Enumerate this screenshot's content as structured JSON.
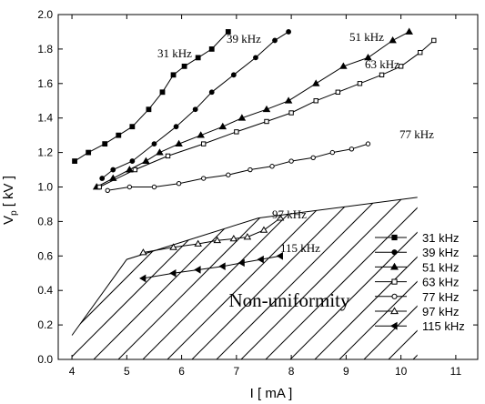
{
  "chart_data": {
    "type": "line",
    "title": "",
    "xlabel": "I [ mA ]",
    "ylabel_main": "V",
    "ylabel_sub": "p",
    "ylabel_unit": "[ kV ]",
    "xlim": [
      3.75,
      11.4
    ],
    "ylim": [
      0.0,
      2.0
    ],
    "x_ticks": [
      4,
      5,
      6,
      7,
      8,
      9,
      10,
      11
    ],
    "x_tick_labels": [
      "4",
      "5",
      "6",
      "7",
      "8",
      "9",
      "10",
      "11"
    ],
    "y_ticks": [
      0.0,
      0.2,
      0.4,
      0.6,
      0.8,
      1.0,
      1.2,
      1.4,
      1.6,
      1.8,
      2.0
    ],
    "y_tick_labels": [
      "0.0",
      "0.2",
      "0.4",
      "0.6",
      "0.8",
      "1.0",
      "1.2",
      "1.4",
      "1.6",
      "1.8",
      "2.0"
    ],
    "grid": false,
    "legend_position": "bottom-right",
    "series": [
      {
        "name": "31 kHz",
        "marker": "square-filled",
        "label": "31 kHz",
        "x": [
          4.05,
          4.3,
          4.6,
          4.85,
          5.1,
          5.4,
          5.65,
          5.85,
          6.05,
          6.3,
          6.55,
          6.85
        ],
        "y": [
          1.15,
          1.2,
          1.25,
          1.3,
          1.35,
          1.45,
          1.55,
          1.65,
          1.7,
          1.75,
          1.8,
          1.9
        ]
      },
      {
        "name": "39 kHz",
        "marker": "circle-filled",
        "label": "39 kHz",
        "x": [
          4.55,
          4.75,
          5.1,
          5.5,
          5.9,
          6.25,
          6.55,
          6.95,
          7.35,
          7.7,
          7.95
        ],
        "y": [
          1.05,
          1.1,
          1.15,
          1.25,
          1.35,
          1.45,
          1.55,
          1.65,
          1.75,
          1.85,
          1.9
        ]
      },
      {
        "name": "51 kHz",
        "marker": "triangle-filled",
        "label": "51 kHz",
        "x": [
          4.45,
          4.75,
          5.05,
          5.35,
          5.6,
          5.95,
          6.35,
          6.75,
          7.1,
          7.55,
          7.95,
          8.45,
          8.95,
          9.4,
          9.85,
          10.15
        ],
        "y": [
          1.0,
          1.05,
          1.1,
          1.15,
          1.2,
          1.25,
          1.3,
          1.35,
          1.4,
          1.45,
          1.5,
          1.6,
          1.7,
          1.75,
          1.85,
          1.9
        ]
      },
      {
        "name": "63 kHz",
        "marker": "square-open",
        "label": "63 kHz",
        "x": [
          4.5,
          5.15,
          5.75,
          6.4,
          7.0,
          7.55,
          8.0,
          8.45,
          8.85,
          9.25,
          9.65,
          10.0,
          10.35,
          10.6
        ],
        "y": [
          1.0,
          1.1,
          1.18,
          1.25,
          1.32,
          1.38,
          1.43,
          1.5,
          1.55,
          1.6,
          1.65,
          1.7,
          1.78,
          1.85
        ]
      },
      {
        "name": "77 kHz",
        "marker": "circle-open",
        "label": "77 kHz",
        "x": [
          4.65,
          5.05,
          5.5,
          5.95,
          6.4,
          6.85,
          7.25,
          7.65,
          8.0,
          8.4,
          8.75,
          9.1,
          9.4
        ],
        "y": [
          0.98,
          1.0,
          1.0,
          1.02,
          1.05,
          1.07,
          1.1,
          1.12,
          1.15,
          1.17,
          1.2,
          1.22,
          1.25
        ]
      },
      {
        "name": "97 kHz",
        "marker": "triangle-open",
        "label": "97 kHz",
        "x": [
          5.3,
          5.85,
          6.3,
          6.65,
          6.95,
          7.2,
          7.5,
          7.8
        ],
        "y": [
          0.62,
          0.65,
          0.67,
          0.69,
          0.7,
          0.71,
          0.75,
          0.82
        ]
      },
      {
        "name": "115 kHz",
        "marker": "triangle-left-filled",
        "label": "115 kHz",
        "x": [
          5.3,
          5.85,
          6.3,
          6.75,
          7.1,
          7.45,
          7.8
        ],
        "y": [
          0.47,
          0.5,
          0.52,
          0.54,
          0.56,
          0.58,
          0.6
        ]
      }
    ],
    "region": {
      "label": "Non-uniformity",
      "boundary": [
        [
          4.0,
          0.14
        ],
        [
          5.0,
          0.58
        ],
        [
          7.4,
          0.82
        ],
        [
          10.3,
          0.94
        ],
        [
          10.3,
          0.0
        ],
        [
          4.0,
          0.0
        ]
      ]
    }
  }
}
